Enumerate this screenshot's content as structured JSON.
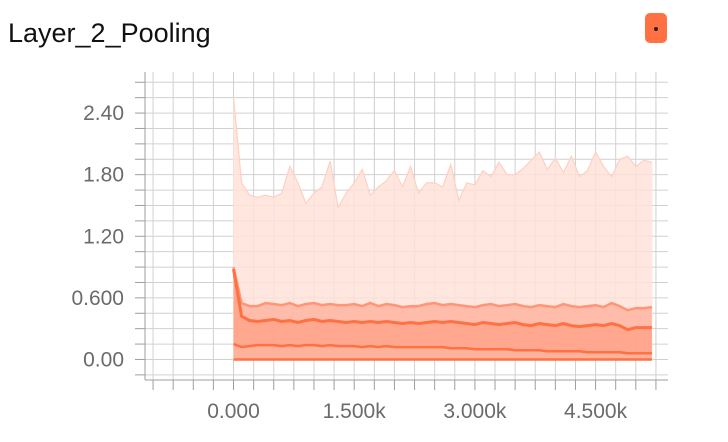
{
  "title": "Layer_2_Pooling",
  "legend": {
    "icon": "dot-icon",
    "color": "#ff7043"
  },
  "colors": {
    "band_outer": "#ffe3da",
    "band_mid": "#ffb29c",
    "band_inner": "#ff8f6e",
    "line": "#ff7043",
    "grid": "#d0d0d0"
  },
  "chart_data": {
    "type": "area",
    "title": "Layer_2_Pooling",
    "xlabel": "",
    "ylabel": "",
    "xlim": [
      -1100,
      5400
    ],
    "ylim": [
      -0.2,
      2.8
    ],
    "x_ticks": [
      0,
      1500,
      3000,
      4500
    ],
    "x_tick_labels": [
      "0.000",
      "1.500k",
      "3.000k",
      "4.500k"
    ],
    "y_ticks": [
      0.0,
      0.6,
      1.2,
      1.8,
      2.4
    ],
    "y_tick_labels": [
      "0.00",
      "0.600",
      "1.20",
      "1.80",
      "2.40"
    ],
    "grid": true,
    "x": [
      0,
      100,
      200,
      300,
      400,
      500,
      600,
      700,
      800,
      900,
      1000,
      1100,
      1200,
      1300,
      1400,
      1500,
      1600,
      1700,
      1800,
      1900,
      2000,
      2100,
      2200,
      2300,
      2400,
      2500,
      2600,
      2700,
      2800,
      2900,
      3000,
      3100,
      3200,
      3300,
      3400,
      3500,
      3600,
      3700,
      3800,
      3900,
      4000,
      4100,
      4200,
      4300,
      4400,
      4500,
      4600,
      4700,
      4800,
      4900,
      5000,
      5100,
      5200
    ],
    "series": [
      {
        "role": "max",
        "values": [
          2.55,
          1.72,
          1.6,
          1.58,
          1.6,
          1.58,
          1.62,
          1.88,
          1.72,
          1.52,
          1.62,
          1.68,
          1.93,
          1.48,
          1.62,
          1.72,
          1.85,
          1.6,
          1.68,
          1.74,
          1.84,
          1.68,
          1.88,
          1.62,
          1.72,
          1.72,
          1.68,
          1.9,
          1.55,
          1.72,
          1.7,
          1.84,
          1.78,
          1.92,
          1.8,
          1.8,
          1.86,
          1.94,
          2.02,
          1.85,
          1.96,
          1.82,
          1.98,
          1.78,
          1.84,
          2.02,
          1.88,
          1.78,
          1.95,
          1.98,
          1.88,
          1.94,
          1.92
        ]
      },
      {
        "role": "upper",
        "values": [
          0.9,
          0.55,
          0.52,
          0.52,
          0.55,
          0.54,
          0.53,
          0.55,
          0.52,
          0.54,
          0.55,
          0.53,
          0.54,
          0.53,
          0.53,
          0.54,
          0.52,
          0.55,
          0.52,
          0.54,
          0.53,
          0.51,
          0.52,
          0.52,
          0.54,
          0.55,
          0.53,
          0.54,
          0.53,
          0.52,
          0.51,
          0.53,
          0.54,
          0.52,
          0.53,
          0.54,
          0.52,
          0.51,
          0.53,
          0.52,
          0.51,
          0.54,
          0.52,
          0.51,
          0.52,
          0.53,
          0.51,
          0.55,
          0.52,
          0.48,
          0.5,
          0.5,
          0.51
        ]
      },
      {
        "role": "median",
        "values": [
          0.88,
          0.42,
          0.38,
          0.37,
          0.38,
          0.39,
          0.37,
          0.38,
          0.36,
          0.38,
          0.39,
          0.37,
          0.38,
          0.37,
          0.36,
          0.37,
          0.36,
          0.37,
          0.36,
          0.37,
          0.36,
          0.35,
          0.36,
          0.35,
          0.36,
          0.37,
          0.36,
          0.37,
          0.36,
          0.35,
          0.34,
          0.36,
          0.35,
          0.34,
          0.35,
          0.36,
          0.34,
          0.33,
          0.35,
          0.34,
          0.33,
          0.35,
          0.33,
          0.32,
          0.33,
          0.34,
          0.33,
          0.35,
          0.33,
          0.29,
          0.31,
          0.31,
          0.31
        ]
      },
      {
        "role": "lower",
        "values": [
          0.15,
          0.12,
          0.13,
          0.14,
          0.14,
          0.14,
          0.13,
          0.14,
          0.13,
          0.14,
          0.14,
          0.13,
          0.14,
          0.13,
          0.13,
          0.13,
          0.12,
          0.13,
          0.12,
          0.13,
          0.12,
          0.12,
          0.12,
          0.12,
          0.12,
          0.12,
          0.12,
          0.11,
          0.11,
          0.11,
          0.1,
          0.1,
          0.1,
          0.1,
          0.1,
          0.09,
          0.09,
          0.09,
          0.09,
          0.08,
          0.08,
          0.08,
          0.08,
          0.08,
          0.07,
          0.07,
          0.07,
          0.07,
          0.07,
          0.06,
          0.06,
          0.06,
          0.06
        ]
      },
      {
        "role": "min",
        "values": [
          0.0,
          0.0,
          0.0,
          0.0,
          0.0,
          0.0,
          0.0,
          0.0,
          0.0,
          0.0,
          0.0,
          0.0,
          0.0,
          0.0,
          0.0,
          0.0,
          0.0,
          0.0,
          0.0,
          0.0,
          0.0,
          0.0,
          0.0,
          0.0,
          0.0,
          0.0,
          0.0,
          0.0,
          0.0,
          0.0,
          0.0,
          0.0,
          0.0,
          0.0,
          0.0,
          0.0,
          0.0,
          0.0,
          0.0,
          0.0,
          0.0,
          0.0,
          0.0,
          0.0,
          0.0,
          0.0,
          0.0,
          0.0,
          0.0,
          0.0,
          0.0,
          0.0,
          0.0
        ]
      }
    ]
  }
}
